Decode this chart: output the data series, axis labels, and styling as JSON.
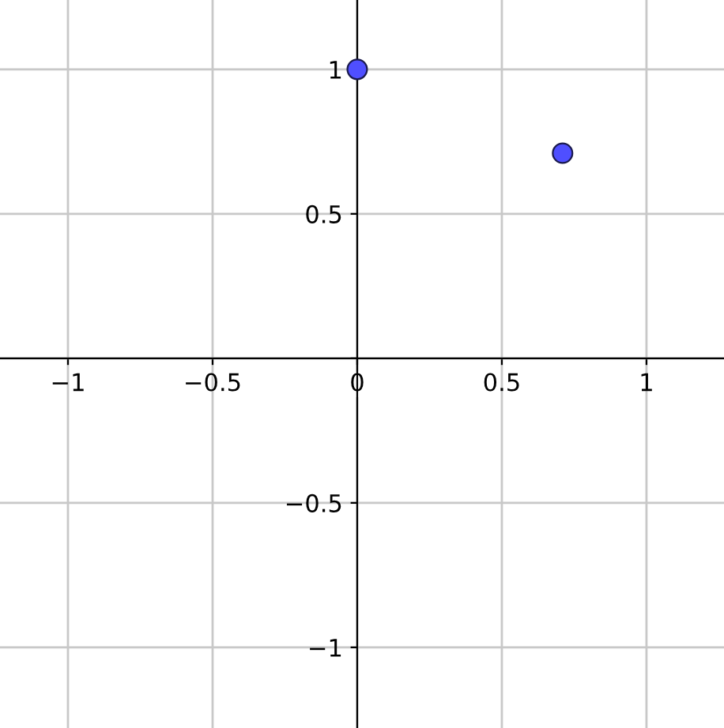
{
  "chart_data": {
    "type": "scatter",
    "x": [
      0,
      0.71
    ],
    "values": [
      1,
      0.71
    ],
    "color": "#4f4fff",
    "marker": "circle",
    "xlim": [
      -1.235,
      1.268
    ],
    "ylim": [
      -1.279,
      1.24
    ],
    "xticks": [
      -1,
      -0.5,
      0,
      0.5,
      1
    ],
    "yticks": [
      -1,
      -0.5,
      {
        "value": 0,
        "label": null
      },
      0.5,
      1
    ],
    "grid": true
  }
}
